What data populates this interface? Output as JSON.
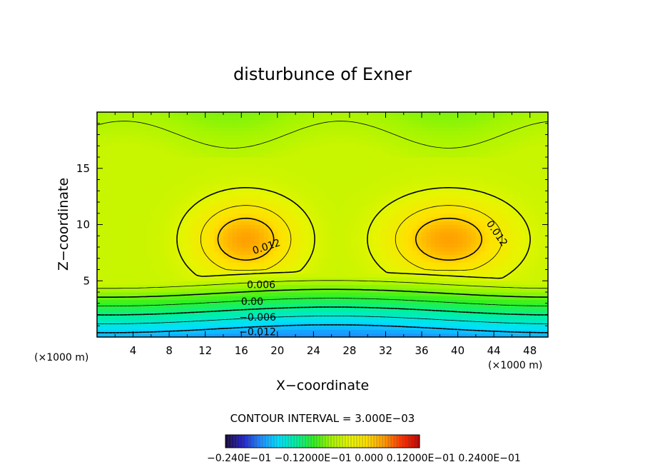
{
  "chart_data": {
    "type": "heatmap",
    "title": "disturbunce of Exner",
    "xlabel": "X−coordinate",
    "ylabel": "Z−coordinate",
    "x_unit_left": "(×1000 m)",
    "x_unit_right": "(×1000 m)",
    "xlim": [
      0,
      50
    ],
    "ylim": [
      0,
      20
    ],
    "x_ticks": [
      4,
      8,
      12,
      16,
      20,
      24,
      28,
      32,
      36,
      40,
      44,
      48
    ],
    "y_ticks": [
      5,
      10,
      15
    ],
    "contour_interval_text": "CONTOUR INTERVAL = 3.000E−03",
    "contour_labels": [
      {
        "text": "0.012",
        "x": 18.8,
        "z": 8.0,
        "angle": -18
      },
      {
        "text": "0.012",
        "x": 44.3,
        "z": 9.2,
        "angle": 55
      },
      {
        "text": "0.006",
        "x": 18.2,
        "z": 4.6,
        "angle": 0
      },
      {
        "text": "0.00",
        "x": 17.2,
        "z": 3.1,
        "angle": 0
      },
      {
        "text": "−0.006",
        "x": 17.8,
        "z": 1.7,
        "angle": 0
      },
      {
        "text": "−0.012",
        "x": 17.8,
        "z": 0.4,
        "angle": 0
      }
    ],
    "colorbar_labels_text": "−0.240E−01   −0.12000E−01   0.000   0.12000E−01   0.2400E−01",
    "colorbar_range": [
      -0.024,
      0.024
    ],
    "colormap": [
      "#1a0a3a",
      "#2222c8",
      "#1e8cff",
      "#00e0ff",
      "#00f0a0",
      "#30f020",
      "#a6f500",
      "#e6f500",
      "#ffe000",
      "#ff9a00",
      "#ff3000",
      "#c00000"
    ],
    "field_extrema": {
      "max": 0.0148,
      "min": -0.0148
    }
  }
}
